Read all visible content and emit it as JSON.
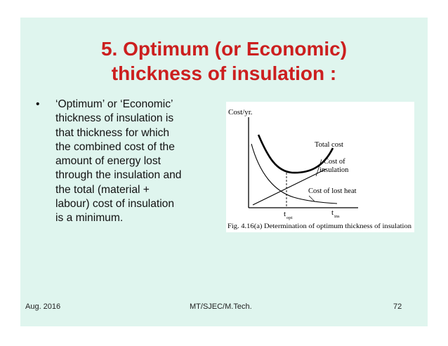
{
  "slide": {
    "title_line1": "5. Optimum (or Economic)",
    "title_line2": "thickness of insulation :",
    "bullet_symbol": "•",
    "bullet_lines": [
      "‘Optimum’ or ‘Economic’",
      "thickness of insulation is",
      "that thickness for which",
      "the combined cost of the",
      "amount of energy lost",
      "through the insulation and",
      "the total (material +",
      "labour) cost of insulation",
      "is a minimum."
    ]
  },
  "figure": {
    "y_axis_label": "Cost/yr.",
    "curve_total": "Total cost",
    "curve_insulation_1": "Cost of",
    "curve_insulation_2": "insulation",
    "curve_lost_heat": "Cost of lost heat",
    "x_label_opt": "t",
    "x_label_opt_sub": "opt",
    "x_label_ins": "t",
    "x_label_ins_sub": "ins",
    "caption": "Fig. 4.16(a) Determination of optimum thickness of insulation"
  },
  "footer": {
    "left": "Aug. 2016",
    "center": "MT/SJEC/M.Tech.",
    "right": "72"
  }
}
